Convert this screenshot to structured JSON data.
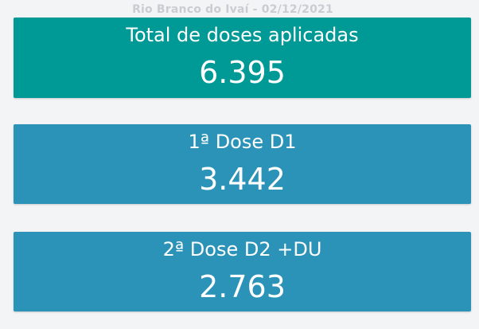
{
  "header": {
    "title": "Rio Branco do Ivaí - 02/12/2021"
  },
  "cards": [
    {
      "label": "Total de doses aplicadas",
      "value": "6.395",
      "color": "#009a96"
    },
    {
      "label": "1ª Dose D1",
      "value": "3.442",
      "color": "#2b93b8"
    },
    {
      "label": "2ª Dose D2 +DU",
      "value": "2.763",
      "color": "#2b93b8"
    }
  ]
}
